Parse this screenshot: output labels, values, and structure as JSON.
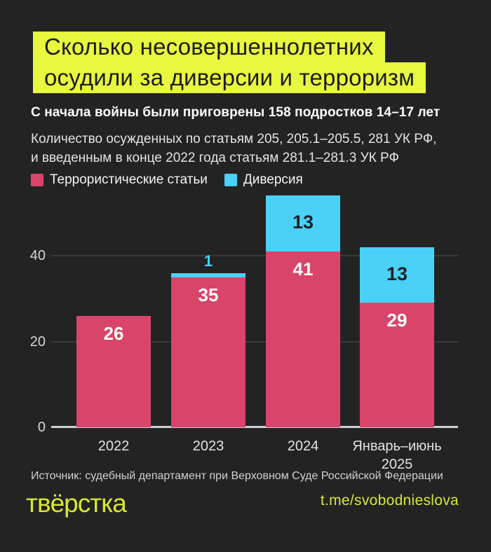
{
  "page": {
    "background_color": "#232323",
    "accent_yellow": "#e7f83e",
    "footer_yellow": "#d8e734"
  },
  "header": {
    "title_line1": "Сколько несовершеннолетних",
    "title_line2": "осудили за диверсии и терроризм",
    "highlight_color": "#e7f83e",
    "title_text_color": "#1c1c1c",
    "kicker": "С начала войны были приговрены 158 подростков 14–17 лет",
    "description_line1": "Количество осужденных по статьям 205, 205.1–205.5, 281 УК РФ,",
    "description_line2": "и введенным в конце 2022 года статьям 281.1–281.3 УК РФ"
  },
  "legend": {
    "items": [
      {
        "label": "Террористические статьи",
        "color": "#d9456a"
      },
      {
        "label": "Диверсия",
        "color": "#4ad1f8"
      }
    ]
  },
  "chart_data": {
    "type": "bar",
    "stacked": true,
    "categories": [
      "2022",
      "2023",
      "2024",
      "Январь–июнь\n2025"
    ],
    "series": [
      {
        "name": "Террористические статьи",
        "color": "#d9456a",
        "values": [
          26,
          35,
          41,
          29
        ]
      },
      {
        "name": "Диверсия",
        "color": "#4ad1f8",
        "values": [
          0,
          1,
          13,
          13
        ]
      }
    ],
    "totals": [
      26,
      36,
      54,
      42
    ],
    "yticks": [
      0,
      20,
      40
    ],
    "ylim": [
      0,
      56
    ],
    "grid": true,
    "legend_position": "top",
    "value_labels_shown": true
  },
  "footer": {
    "source": "Источник: судебный департамент при Верховном Суде Российской Федерации",
    "logo": "твёрстка",
    "link": "t.me/svobodnieslova"
  }
}
